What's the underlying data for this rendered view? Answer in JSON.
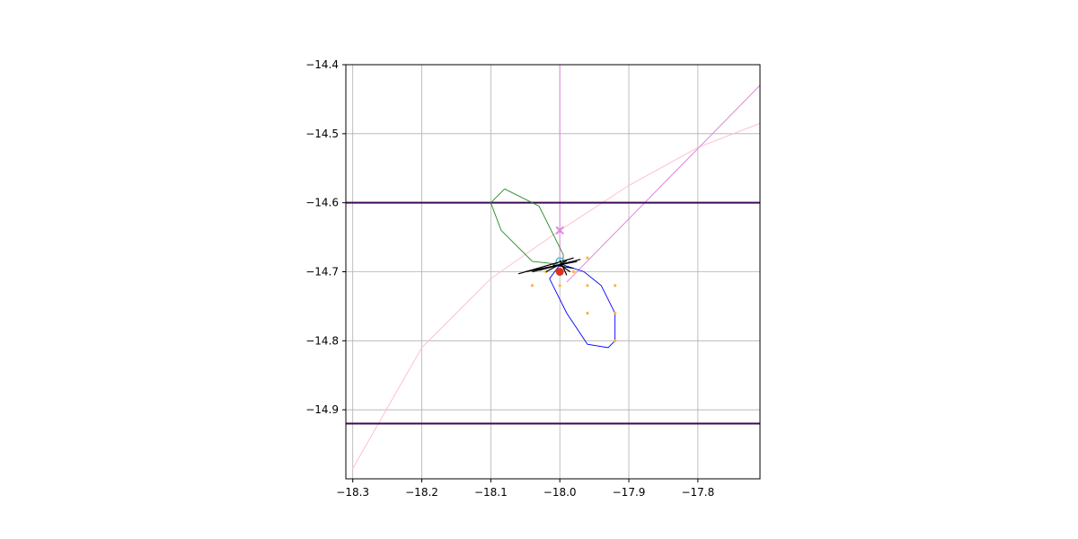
{
  "chart_data": {
    "type": "scatter",
    "title": "",
    "xlabel": "",
    "ylabel": "",
    "xlim": [
      -18.31,
      -17.71
    ],
    "ylim": [
      -15.0,
      -14.4
    ],
    "grid": true,
    "legend": "none",
    "x_ticks": [
      -18.3,
      -18.2,
      -18.1,
      -18.0,
      -17.9,
      -17.8
    ],
    "x_tick_labels": [
      "−18.3",
      "−18.2",
      "−18.1",
      "−18.0",
      "−17.9",
      "−17.8"
    ],
    "y_ticks": [
      -14.4,
      -14.5,
      -14.6,
      -14.7,
      -14.8,
      -14.9
    ],
    "y_tick_labels": [
      "−14.4",
      "−14.5",
      "−14.6",
      "−14.7",
      "−14.8",
      "−14.9"
    ],
    "hlines": [
      {
        "y": -14.6,
        "color": "#3b0a55"
      },
      {
        "y": -14.92,
        "color": "#3b0a55"
      }
    ],
    "vline": {
      "x": -18.0,
      "y_from": -14.4,
      "y_to": -14.685,
      "color": "#dd88dd"
    },
    "diag_line": {
      "points": [
        [
          -17.99,
          -14.715
        ],
        [
          -17.71,
          -14.43
        ]
      ],
      "color": "#dd88dd"
    },
    "arc": {
      "points": [
        [
          -18.3,
          -14.985
        ],
        [
          -18.2,
          -14.81
        ],
        [
          -18.1,
          -14.71
        ],
        [
          -18.0,
          -14.64
        ],
        [
          -17.9,
          -14.575
        ],
        [
          -17.8,
          -14.52
        ],
        [
          -17.71,
          -14.485
        ]
      ],
      "color": "#ffc0cb"
    },
    "green_polygon": {
      "points": [
        [
          -18.08,
          -14.58
        ],
        [
          -18.1,
          -14.6
        ],
        [
          -18.085,
          -14.64
        ],
        [
          -18.04,
          -14.685
        ],
        [
          -17.995,
          -14.69
        ],
        [
          -17.995,
          -14.675
        ],
        [
          -18.03,
          -14.605
        ],
        [
          -18.08,
          -14.58
        ]
      ],
      "color": "#228b22"
    },
    "blue_polygon": {
      "points": [
        [
          -17.995,
          -14.69
        ],
        [
          -17.965,
          -14.7
        ],
        [
          -17.94,
          -14.72
        ],
        [
          -17.92,
          -14.76
        ],
        [
          -17.92,
          -14.8
        ],
        [
          -17.93,
          -14.81
        ],
        [
          -17.96,
          -14.805
        ],
        [
          -17.99,
          -14.76
        ],
        [
          -18.015,
          -14.71
        ],
        [
          -18.0,
          -14.69
        ]
      ],
      "color": "#0000ff"
    },
    "orange_points": [
      [
        -18.04,
        -14.72
      ],
      [
        -18.0,
        -14.72
      ],
      [
        -17.96,
        -14.72
      ],
      [
        -17.92,
        -14.72
      ],
      [
        -17.96,
        -14.76
      ],
      [
        -17.92,
        -14.76
      ],
      [
        -17.92,
        -14.8
      ],
      [
        -18.02,
        -14.7
      ],
      [
        -17.98,
        -14.7
      ],
      [
        -17.96,
        -14.68
      ]
    ],
    "orange_color": "#ffb347",
    "black_star_center": [
      -18.0,
      -14.695
    ],
    "black_star_segments": [
      [
        [
          -18.06,
          -14.703
        ],
        [
          -17.98,
          -14.68
        ]
      ],
      [
        [
          -18.05,
          -14.7
        ],
        [
          -17.975,
          -14.685
        ]
      ],
      [
        [
          -18.04,
          -14.7
        ],
        [
          -17.97,
          -14.682
        ]
      ],
      [
        [
          -18.03,
          -14.698
        ],
        [
          -17.985,
          -14.686
        ]
      ],
      [
        [
          -18.02,
          -14.7
        ],
        [
          -17.99,
          -14.684
        ]
      ],
      [
        [
          -18.0,
          -14.69
        ],
        [
          -17.985,
          -14.7
        ]
      ],
      [
        [
          -18.0,
          -14.683
        ],
        [
          -17.99,
          -14.705
        ]
      ],
      [
        [
          -18.01,
          -14.69
        ],
        [
          -17.98,
          -14.695
        ]
      ]
    ],
    "red_point": {
      "x": -18.0,
      "y": -14.7,
      "color": "#e03020"
    },
    "cyan_point": {
      "x": -18.0,
      "y": -14.685,
      "color": "#40c0d0"
    },
    "x_marker": {
      "x": -18.0,
      "y": -14.64,
      "color": "#dd88dd"
    }
  }
}
